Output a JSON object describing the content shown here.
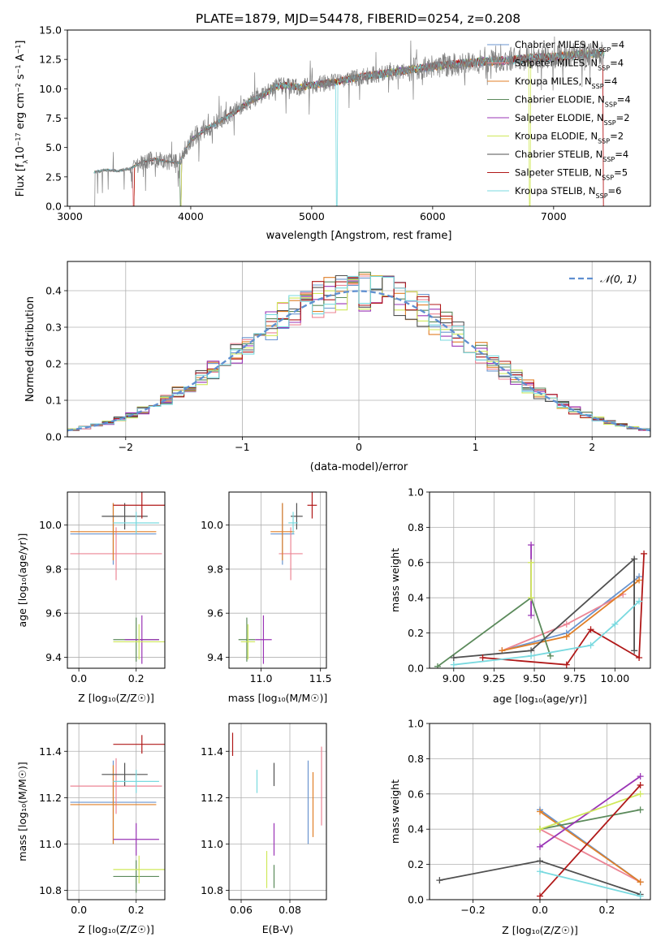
{
  "colors": {
    "Chabrier MILES": "#6a95cf",
    "Salpeter MILES": "#ec8595",
    "Kroupa MILES": "#e07f27",
    "Chabrier ELODIE": "#5b8a5b",
    "Salpeter ELODIE": "#9a34b5",
    "Kroupa ELODIE": "#cfe85a",
    "Chabrier STELIB": "#505050",
    "Salpeter STELIB": "#b01818",
    "Kroupa STELIB": "#79d9df",
    "spectrum": "#808080",
    "gauss": "#5f8fd0",
    "grid": "#b0b0b0"
  },
  "chart_data": [
    {
      "type": "line",
      "title": "PLATE=1879, MJD=54478, FIBERID=0254, z=0.208",
      "xlabel": "wavelength [Angstrom, rest frame]",
      "ylabel": "Flux [f",
      "xlim": [
        2980,
        7800
      ],
      "ylim": [
        0,
        15
      ],
      "xticks": [
        3000,
        4000,
        5000,
        6000,
        7000
      ],
      "yticks": [
        0.0,
        2.5,
        5.0,
        7.5,
        10.0,
        12.5,
        15.0
      ],
      "grid": false,
      "legend_position": "top-right",
      "legend": [
        {
          "model": "Chabrier MILES",
          "nssp": "4"
        },
        {
          "model": "Salpeter MILES",
          "nssp": "4"
        },
        {
          "model": "Kroupa MILES",
          "nssp": "4"
        },
        {
          "model": "Chabrier ELODIE",
          "nssp": "4"
        },
        {
          "model": "Salpeter ELODIE",
          "nssp": "2"
        },
        {
          "model": "Kroupa ELODIE",
          "nssp": "2"
        },
        {
          "model": "Chabrier STELIB",
          "nssp": "4"
        },
        {
          "model": "Salpeter STELIB",
          "nssp": "5"
        },
        {
          "model": "Kroupa STELIB",
          "nssp": "6"
        }
      ],
      "continuum": {
        "x": [
          3200,
          3300,
          3400,
          3500,
          3600,
          3700,
          3800,
          3900,
          4000,
          4100,
          4200,
          4300,
          4400,
          4500,
          4600,
          4700,
          4800,
          4900,
          5000,
          5200,
          5400,
          5600,
          5800,
          6000,
          6200,
          6400,
          6600,
          6800,
          7000,
          7200,
          7400
        ],
        "y": [
          2.9,
          3.1,
          3.0,
          3.2,
          3.8,
          4.0,
          3.8,
          3.7,
          5.6,
          6.4,
          7.0,
          7.6,
          8.3,
          9.0,
          9.5,
          10.2,
          10.3,
          10.1,
          10.3,
          10.6,
          11.0,
          11.3,
          11.6,
          11.9,
          12.1,
          12.3,
          12.4,
          12.6,
          12.7,
          12.9,
          13.0
        ]
      }
    },
    {
      "type": "histogram",
      "xlabel": "(data-model)/error",
      "ylabel": "Normed distribution",
      "xlim": [
        -2.5,
        2.5
      ],
      "ylim": [
        0,
        0.48
      ],
      "xticks": [
        -2,
        -1,
        0,
        1,
        2
      ],
      "yticks": [
        0.0,
        0.1,
        0.2,
        0.3,
        0.4
      ],
      "grid": true,
      "legend": "𝒩(0, 1)",
      "legend_position": "top-right",
      "bin_width": 0.1,
      "gauss": {
        "mean": 0,
        "sigma": 1
      }
    },
    {
      "type": "scatter",
      "xlabel": "Z [log₁₀(Z/Z☉)]",
      "ylabel": "age  [log₁₀(age/yr)]",
      "xlim": [
        -0.04,
        0.3
      ],
      "ylim": [
        9.35,
        10.15
      ],
      "xticks": [
        0.0,
        0.2
      ],
      "yticks": [
        9.4,
        9.6,
        9.8,
        10.0
      ],
      "grid": true,
      "points": [
        {
          "model": "Chabrier MILES",
          "x": 0.12,
          "y": 9.96,
          "xerr": 0.15,
          "yerr": 0.14
        },
        {
          "model": "Salpeter MILES",
          "x": 0.13,
          "y": 9.87,
          "xerr": 0.16,
          "yerr": 0.12
        },
        {
          "model": "Kroupa MILES",
          "x": 0.12,
          "y": 9.97,
          "xerr": 0.15,
          "yerr": 0.13
        },
        {
          "model": "Chabrier ELODIE",
          "x": 0.2,
          "y": 9.48,
          "xerr": 0.08,
          "yerr": 0.1
        },
        {
          "model": "Salpeter ELODIE",
          "x": 0.22,
          "y": 9.48,
          "xerr": 0.06,
          "yerr": 0.11
        },
        {
          "model": "Kroupa ELODIE",
          "x": 0.21,
          "y": 9.47,
          "xerr": 0.09,
          "yerr": 0.08
        },
        {
          "model": "Chabrier STELIB",
          "x": 0.16,
          "y": 10.04,
          "xerr": 0.08,
          "yerr": 0.06
        },
        {
          "model": "Salpeter STELIB",
          "x": 0.22,
          "y": 10.09,
          "xerr": 0.1,
          "yerr": 0.06
        },
        {
          "model": "Kroupa STELIB",
          "x": 0.2,
          "y": 10.01,
          "xerr": 0.08,
          "yerr": 0.05
        }
      ]
    },
    {
      "type": "scatter",
      "xlabel": "mass [log₁₀(M/M☉)]",
      "ylabel": "",
      "xlim": [
        10.73,
        11.55
      ],
      "ylim": [
        9.35,
        10.15
      ],
      "xticks": [
        11.0,
        11.5
      ],
      "yticks": [
        9.4,
        9.6,
        9.8,
        10.0
      ],
      "grid": true,
      "points": [
        {
          "model": "Chabrier MILES",
          "x": 11.18,
          "y": 9.96,
          "xerr": 0.1,
          "yerr": 0.14
        },
        {
          "model": "Salpeter MILES",
          "x": 11.25,
          "y": 9.87,
          "xerr": 0.1,
          "yerr": 0.12
        },
        {
          "model": "Kroupa MILES",
          "x": 11.18,
          "y": 9.97,
          "xerr": 0.1,
          "yerr": 0.13
        },
        {
          "model": "Chabrier ELODIE",
          "x": 10.88,
          "y": 9.48,
          "xerr": 0.07,
          "yerr": 0.1
        },
        {
          "model": "Salpeter ELODIE",
          "x": 11.02,
          "y": 9.48,
          "xerr": 0.07,
          "yerr": 0.11
        },
        {
          "model": "Kroupa ELODIE",
          "x": 10.89,
          "y": 9.47,
          "xerr": 0.06,
          "yerr": 0.08
        },
        {
          "model": "Chabrier STELIB",
          "x": 11.3,
          "y": 10.04,
          "xerr": 0.05,
          "yerr": 0.06
        },
        {
          "model": "Salpeter STELIB",
          "x": 11.43,
          "y": 10.09,
          "xerr": 0.04,
          "yerr": 0.06
        },
        {
          "model": "Kroupa STELIB",
          "x": 11.27,
          "y": 10.01,
          "xerr": 0.04,
          "yerr": 0.05
        }
      ]
    },
    {
      "type": "line",
      "xlabel": "age  [log₁₀(age/yr)]",
      "ylabel": "mass weight",
      "xlim": [
        8.85,
        10.22
      ],
      "ylim": [
        0,
        1
      ],
      "xticks": [
        9.0,
        9.25,
        9.5,
        9.75,
        10.0
      ],
      "yticks": [
        0.0,
        0.2,
        0.4,
        0.6,
        0.8,
        1.0
      ],
      "grid": true,
      "series": [
        {
          "model": "Chabrier MILES",
          "x": [
            9.3,
            9.7,
            10.15
          ],
          "y": [
            0.1,
            0.2,
            0.52
          ]
        },
        {
          "model": "Salpeter MILES",
          "x": [
            9.3,
            9.7,
            10.05
          ],
          "y": [
            0.1,
            0.25,
            0.42
          ]
        },
        {
          "model": "Kroupa MILES",
          "x": [
            9.3,
            9.7,
            10.15
          ],
          "y": [
            0.1,
            0.18,
            0.5
          ]
        },
        {
          "model": "Chabrier ELODIE",
          "x": [
            8.9,
            9.48,
            9.6
          ],
          "y": [
            0.01,
            0.4,
            0.07
          ]
        },
        {
          "model": "Salpeter ELODIE",
          "x": [
            9.48,
            9.48
          ],
          "y": [
            0.3,
            0.7
          ]
        },
        {
          "model": "Kroupa ELODIE",
          "x": [
            9.48,
            9.48
          ],
          "y": [
            0.4,
            0.6
          ]
        },
        {
          "model": "Chabrier STELIB",
          "x": [
            9.0,
            9.48,
            10.12,
            10.12
          ],
          "y": [
            0.06,
            0.1,
            0.62,
            0.1
          ]
        },
        {
          "model": "Salpeter STELIB",
          "x": [
            9.18,
            9.7,
            9.85,
            10.15,
            10.18
          ],
          "y": [
            0.06,
            0.02,
            0.22,
            0.06,
            0.65
          ]
        },
        {
          "model": "Kroupa STELIB",
          "x": [
            9.0,
            9.48,
            9.85,
            10.0,
            10.15
          ],
          "y": [
            0.02,
            0.07,
            0.13,
            0.25,
            0.38
          ]
        }
      ]
    },
    {
      "type": "scatter",
      "xlabel": "Z [log₁₀(Z/Z☉)]",
      "ylabel": "mass [log₁₀(M/M☉)]",
      "xlim": [
        -0.04,
        0.3
      ],
      "ylim": [
        10.76,
        11.52
      ],
      "xticks": [
        0.0,
        0.2
      ],
      "yticks": [
        10.8,
        11.0,
        11.2,
        11.4
      ],
      "grid": true,
      "points": [
        {
          "model": "Chabrier MILES",
          "x": 0.12,
          "y": 11.18,
          "xerr": 0.15,
          "yerr": 0.18
        },
        {
          "model": "Salpeter MILES",
          "x": 0.13,
          "y": 11.25,
          "xerr": 0.16,
          "yerr": 0.12
        },
        {
          "model": "Kroupa MILES",
          "x": 0.12,
          "y": 11.17,
          "xerr": 0.15,
          "yerr": 0.17
        },
        {
          "model": "Chabrier ELODIE",
          "x": 0.2,
          "y": 10.86,
          "xerr": 0.08,
          "yerr": 0.07
        },
        {
          "model": "Salpeter ELODIE",
          "x": 0.2,
          "y": 11.02,
          "xerr": 0.08,
          "yerr": 0.07
        },
        {
          "model": "Kroupa ELODIE",
          "x": 0.21,
          "y": 10.89,
          "xerr": 0.09,
          "yerr": 0.06
        },
        {
          "model": "Chabrier STELIB",
          "x": 0.16,
          "y": 11.3,
          "xerr": 0.08,
          "yerr": 0.05
        },
        {
          "model": "Salpeter STELIB",
          "x": 0.22,
          "y": 11.43,
          "xerr": 0.1,
          "yerr": 0.04
        },
        {
          "model": "Kroupa STELIB",
          "x": 0.2,
          "y": 11.27,
          "xerr": 0.08,
          "yerr": 0.05
        }
      ]
    },
    {
      "type": "scatter",
      "xlabel": "E(B-V)",
      "ylabel": "",
      "xlim": [
        0.055,
        0.095
      ],
      "ylim": [
        10.76,
        11.52
      ],
      "xticks": [
        0.06,
        0.08
      ],
      "yticks": [
        10.8,
        11.0,
        11.2,
        11.4
      ],
      "grid": true,
      "points": [
        {
          "model": "Chabrier MILES",
          "x": 0.0875,
          "y": 11.18,
          "yerr": 0.18
        },
        {
          "model": "Salpeter MILES",
          "x": 0.093,
          "y": 11.25,
          "yerr": 0.17
        },
        {
          "model": "Kroupa MILES",
          "x": 0.0895,
          "y": 11.17,
          "yerr": 0.14
        },
        {
          "model": "Chabrier ELODIE",
          "x": 0.0735,
          "y": 10.86,
          "yerr": 0.05
        },
        {
          "model": "Salpeter ELODIE",
          "x": 0.0735,
          "y": 11.02,
          "yerr": 0.07
        },
        {
          "model": "Kroupa ELODIE",
          "x": 0.0705,
          "y": 10.89,
          "yerr": 0.08
        },
        {
          "model": "Chabrier STELIB",
          "x": 0.0735,
          "y": 11.3,
          "yerr": 0.05
        },
        {
          "model": "Salpeter STELIB",
          "x": 0.0565,
          "y": 11.43,
          "yerr": 0.05
        },
        {
          "model": "Kroupa STELIB",
          "x": 0.0665,
          "y": 11.27,
          "yerr": 0.05
        }
      ]
    },
    {
      "type": "line",
      "xlabel": "Z [log₁₀(Z/Z☉)]",
      "ylabel": "mass weight",
      "xlim": [
        -0.33,
        0.33
      ],
      "ylim": [
        0,
        1
      ],
      "xticks": [
        -0.2,
        0.0,
        0.2
      ],
      "yticks": [
        0.0,
        0.2,
        0.4,
        0.6,
        0.8,
        1.0
      ],
      "grid": true,
      "series": [
        {
          "model": "Chabrier MILES",
          "x": [
            0.0,
            0.3
          ],
          "y": [
            0.51,
            0.1
          ]
        },
        {
          "model": "Salpeter MILES",
          "x": [
            0.0,
            0.3
          ],
          "y": [
            0.4,
            0.1
          ]
        },
        {
          "model": "Kroupa MILES",
          "x": [
            0.0,
            0.3
          ],
          "y": [
            0.5,
            0.1
          ]
        },
        {
          "model": "Chabrier ELODIE",
          "x": [
            0.0,
            0.3
          ],
          "y": [
            0.4,
            0.51
          ]
        },
        {
          "model": "Salpeter ELODIE",
          "x": [
            0.0,
            0.3
          ],
          "y": [
            0.3,
            0.7
          ]
        },
        {
          "model": "Kroupa ELODIE",
          "x": [
            0.0,
            0.3
          ],
          "y": [
            0.4,
            0.6
          ]
        },
        {
          "model": "Chabrier STELIB",
          "x": [
            -0.3,
            0.0,
            0.3
          ],
          "y": [
            0.11,
            0.22,
            0.03
          ]
        },
        {
          "model": "Salpeter STELIB",
          "x": [
            0.0,
            0.3
          ],
          "y": [
            0.02,
            0.65
          ]
        },
        {
          "model": "Kroupa STELIB",
          "x": [
            0.0,
            0.3
          ],
          "y": [
            0.16,
            0.02
          ]
        }
      ]
    }
  ]
}
